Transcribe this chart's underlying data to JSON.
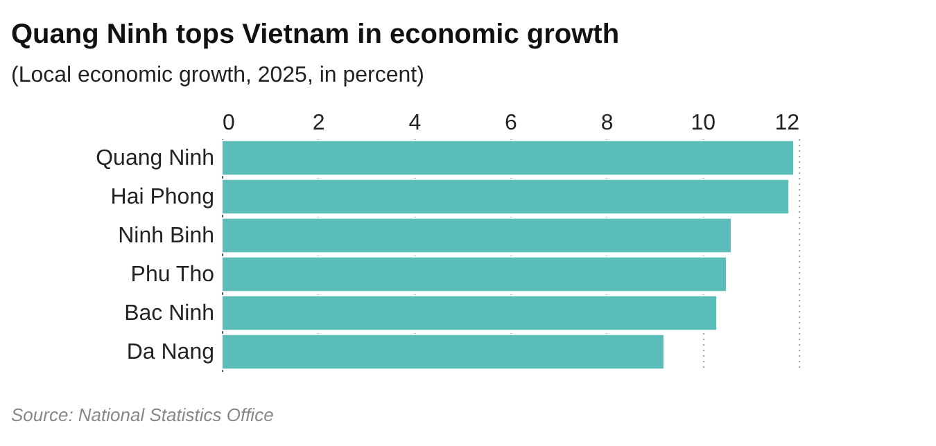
{
  "chart_data": {
    "type": "bar",
    "orientation": "horizontal",
    "title": "Quang Ninh tops Vietnam in economic growth",
    "subtitle": "(Local economic growth, 2025, in percent)",
    "categories": [
      "Quang Ninh",
      "Hai Phong",
      "Ninh Binh",
      "Phu Tho",
      "Bac Ninh",
      "Da Nang"
    ],
    "values": [
      11.9,
      11.8,
      10.6,
      10.5,
      10.3,
      9.2
    ],
    "color": "#5bbdba",
    "xlim": [
      0,
      12
    ],
    "xticks": [
      0,
      2,
      4,
      6,
      8,
      10,
      12
    ],
    "grid": "x",
    "annotations": [
      "Source: National Statistics Office"
    ]
  }
}
